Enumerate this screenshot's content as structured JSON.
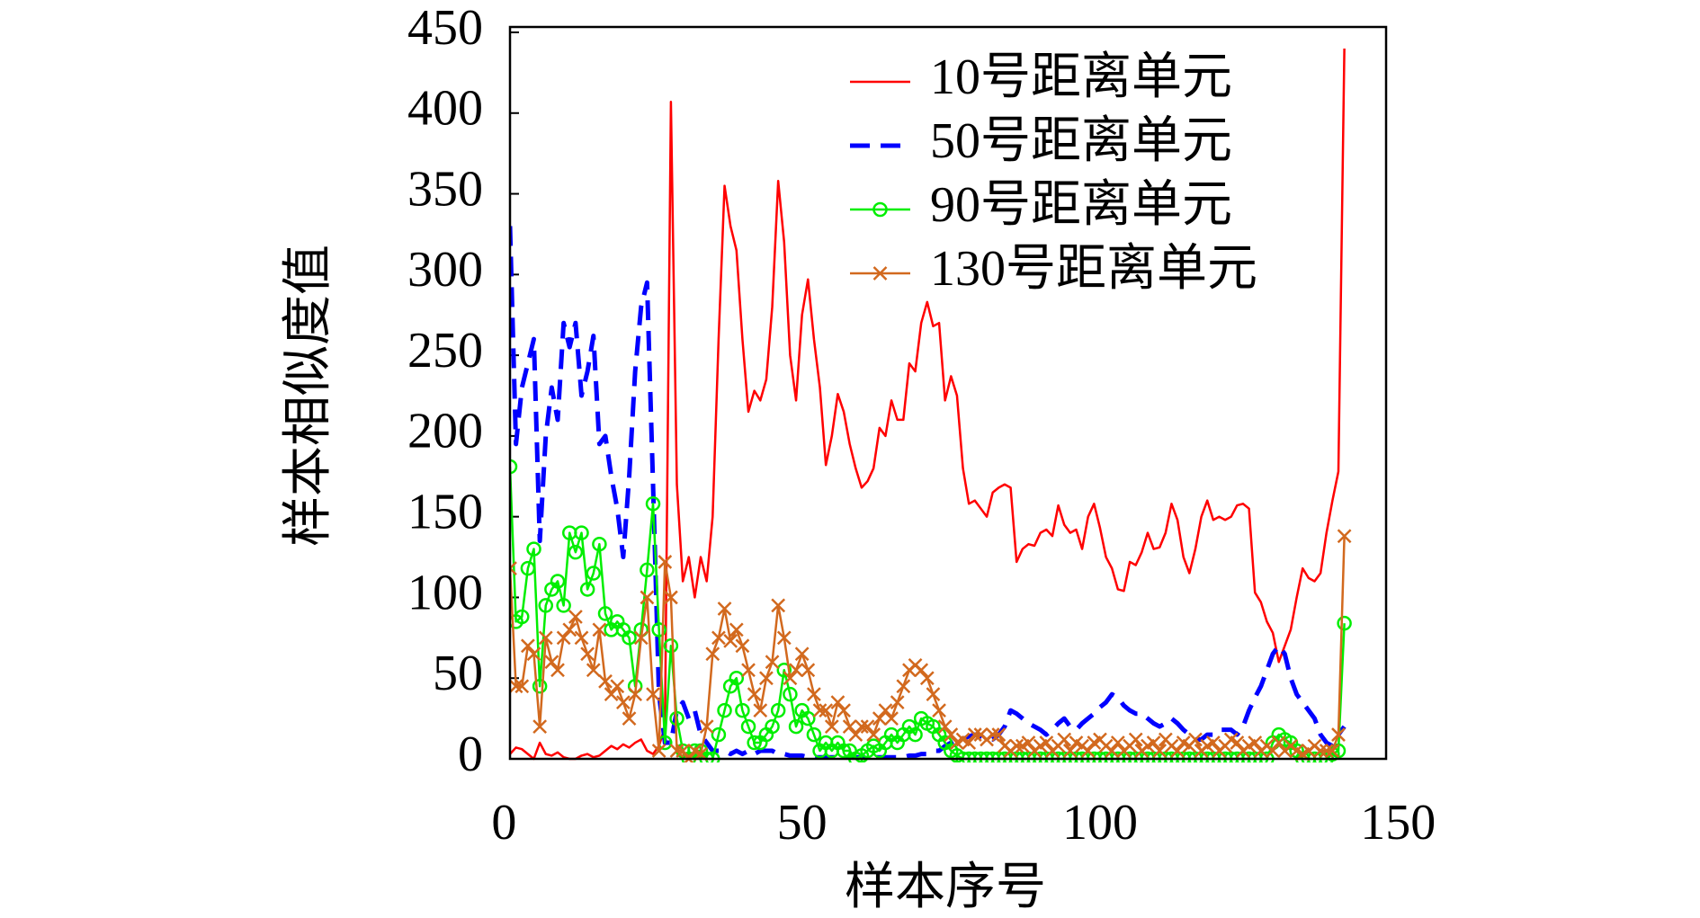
{
  "chart_data": {
    "type": "line",
    "x_label": "样本序号",
    "y_label": "样本相似度值",
    "xlim": [
      1,
      148
    ],
    "xticks": [
      0,
      50,
      100,
      150
    ],
    "ylim": [
      0,
      450
    ],
    "yticks": [
      0,
      50,
      100,
      150,
      200,
      250,
      300,
      350,
      400,
      450
    ],
    "legend": "upper right",
    "x": [
      1,
      2,
      3,
      4,
      5,
      6,
      7,
      8,
      9,
      10,
      11,
      12,
      13,
      14,
      15,
      16,
      17,
      18,
      19,
      20,
      21,
      22,
      23,
      24,
      25,
      26,
      27,
      28,
      29,
      30,
      31,
      32,
      33,
      34,
      35,
      36,
      37,
      38,
      39,
      40,
      41,
      42,
      43,
      44,
      45,
      46,
      47,
      48,
      49,
      50,
      51,
      52,
      53,
      54,
      55,
      56,
      57,
      58,
      59,
      60,
      61,
      62,
      63,
      64,
      65,
      66,
      67,
      68,
      69,
      70,
      71,
      72,
      73,
      74,
      75,
      76,
      77,
      78,
      79,
      80,
      81,
      82,
      83,
      84,
      85,
      86,
      87,
      88,
      89,
      90,
      91,
      92,
      93,
      94,
      95,
      96,
      97,
      98,
      99,
      100,
      101,
      102,
      103,
      104,
      105,
      106,
      107,
      108,
      109,
      110,
      111,
      112,
      113,
      114,
      115,
      116,
      117,
      118,
      119,
      120,
      121,
      122,
      123,
      124,
      125,
      126,
      127,
      128,
      129,
      130,
      131,
      132,
      133,
      134,
      135,
      136,
      137,
      138,
      139,
      140,
      141
    ],
    "series": [
      {
        "name": "10号距离单元",
        "color": "#ff0000",
        "style": "solid",
        "marker": "none",
        "values": [
          3,
          7,
          6,
          3,
          0,
          10,
          3,
          2,
          4,
          1,
          0,
          0,
          2,
          3,
          1,
          2,
          5,
          8,
          6,
          9,
          7,
          10,
          12,
          5,
          3,
          8,
          20,
          407,
          170,
          110,
          125,
          100,
          125,
          110,
          150,
          260,
          355,
          330,
          315,
          260,
          215,
          228,
          222,
          235,
          280,
          358,
          320,
          250,
          222,
          275,
          297,
          260,
          230,
          182,
          200,
          226,
          215,
          195,
          180,
          168,
          172,
          180,
          205,
          200,
          222,
          210,
          210,
          245,
          240,
          270,
          283,
          268,
          270,
          222,
          237,
          225,
          180,
          158,
          160,
          155,
          150,
          165,
          168,
          170,
          168,
          122,
          130,
          133,
          132,
          140,
          142,
          138,
          157,
          145,
          140,
          142,
          130,
          150,
          158,
          143,
          125,
          118,
          105,
          104,
          122,
          120,
          128,
          140,
          130,
          131,
          140,
          158,
          148,
          125,
          115,
          130,
          150,
          160,
          148,
          150,
          148,
          150,
          157,
          158,
          155,
          103,
          97,
          85,
          78,
          60,
          70,
          80,
          100,
          118,
          112,
          110,
          115,
          140,
          160,
          178,
          440
        ]
      },
      {
        "name": "50号距离单元",
        "color": "#0000ff",
        "style": "dashed",
        "marker": "none",
        "values": [
          330,
          195,
          230,
          245,
          260,
          135,
          200,
          230,
          210,
          270,
          255,
          270,
          225,
          240,
          262,
          195,
          200,
          175,
          155,
          125,
          175,
          240,
          280,
          295,
          170,
          40,
          10,
          10,
          30,
          35,
          25,
          30,
          15,
          10,
          5,
          5,
          5,
          3,
          5,
          3,
          5,
          3,
          5,
          5,
          5,
          3,
          3,
          2,
          2,
          2,
          1,
          1,
          1,
          1,
          1,
          1,
          1,
          1,
          1,
          1,
          1,
          1,
          1,
          1,
          1,
          1,
          1,
          2,
          2,
          3,
          3,
          5,
          5,
          8,
          10,
          12,
          12,
          14,
          15,
          14,
          13,
          12,
          15,
          20,
          30,
          28,
          25,
          22,
          20,
          18,
          15,
          18,
          22,
          25,
          20,
          18,
          22,
          25,
          28,
          32,
          35,
          40,
          38,
          33,
          30,
          28,
          28,
          25,
          22,
          20,
          22,
          25,
          22,
          18,
          15,
          12,
          12,
          15,
          15,
          18,
          18,
          18,
          15,
          20,
          30,
          38,
          45,
          55,
          65,
          70,
          65,
          50,
          40,
          35,
          30,
          25,
          15,
          10,
          8,
          15,
          20
        ]
      },
      {
        "name": "90号距离单元",
        "color": "#00ee00",
        "style": "solid",
        "marker": "circle",
        "values": [
          181,
          85,
          88,
          118,
          130,
          45,
          95,
          105,
          110,
          95,
          140,
          128,
          140,
          105,
          115,
          133,
          90,
          80,
          85,
          80,
          75,
          45,
          80,
          117,
          158,
          80,
          10,
          70,
          25,
          5,
          0,
          5,
          5,
          0,
          0,
          15,
          30,
          45,
          50,
          30,
          20,
          10,
          10,
          15,
          20,
          30,
          55,
          40,
          20,
          30,
          25,
          15,
          5,
          10,
          5,
          10,
          5,
          5,
          0,
          2,
          5,
          8,
          5,
          10,
          15,
          10,
          15,
          20,
          15,
          25,
          22,
          20,
          15,
          10,
          5,
          2,
          0,
          0,
          0,
          0,
          0,
          0,
          0,
          0,
          0,
          0,
          0,
          0,
          0,
          0,
          0,
          0,
          0,
          0,
          0,
          0,
          0,
          0,
          0,
          0,
          0,
          0,
          0,
          0,
          0,
          0,
          0,
          0,
          0,
          0,
          0,
          0,
          0,
          0,
          0,
          0,
          0,
          0,
          0,
          0,
          0,
          0,
          0,
          0,
          0,
          0,
          0,
          0,
          10,
          15,
          12,
          10,
          5,
          0,
          0,
          0,
          0,
          0,
          3,
          5,
          84
        ]
      },
      {
        "name": "130号距离单元",
        "color": "#d2691e",
        "style": "solid",
        "marker": "x",
        "values": [
          118,
          45,
          45,
          70,
          65,
          20,
          75,
          60,
          55,
          75,
          80,
          88,
          75,
          65,
          55,
          80,
          48,
          40,
          45,
          35,
          25,
          40,
          75,
          100,
          40,
          5,
          122,
          100,
          5,
          5,
          0,
          5,
          3,
          20,
          65,
          75,
          93,
          73,
          80,
          70,
          55,
          40,
          30,
          50,
          60,
          95,
          75,
          50,
          55,
          65,
          55,
          40,
          30,
          30,
          20,
          35,
          30,
          20,
          15,
          20,
          20,
          15,
          25,
          30,
          25,
          35,
          45,
          55,
          58,
          55,
          50,
          40,
          30,
          20,
          15,
          10,
          12,
          10,
          15,
          15,
          12,
          15,
          15,
          8,
          5,
          8,
          8,
          10,
          5,
          8,
          10,
          5,
          8,
          12,
          5,
          10,
          8,
          5,
          10,
          12,
          8,
          5,
          10,
          5,
          8,
          12,
          5,
          8,
          10,
          5,
          12,
          8,
          5,
          10,
          8,
          12,
          5,
          8,
          10,
          5,
          8,
          12,
          10,
          5,
          8,
          10,
          5,
          8,
          5,
          10,
          5,
          8,
          5,
          3,
          5,
          8,
          5,
          5,
          5,
          15,
          138
        ]
      }
    ]
  }
}
